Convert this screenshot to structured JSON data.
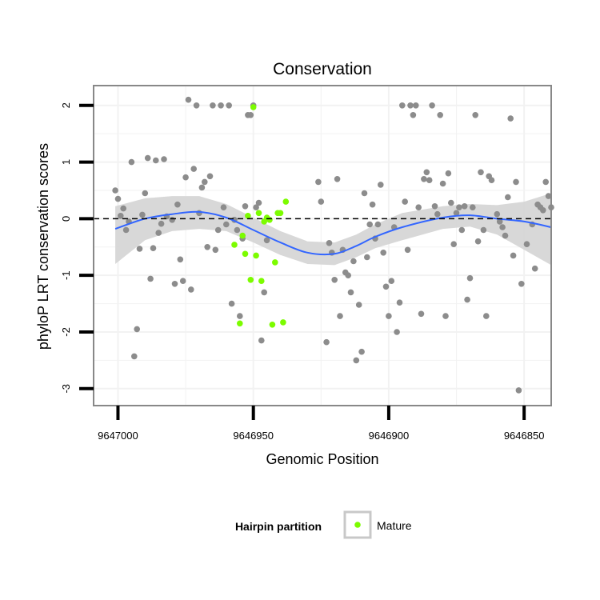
{
  "chart_data": {
    "type": "scatter",
    "title": "Conservation",
    "xlabel": "Genomic Position",
    "ylabel": "phyloP LRT conservation scores",
    "x_reversed": true,
    "xlim": [
      9647009,
      9646840
    ],
    "ylim": [
      -3.3,
      2.35
    ],
    "x_ticks": [
      9647000,
      9646950,
      9646900,
      9646850
    ],
    "y_ticks": [
      -3,
      -2,
      -1,
      0,
      1,
      2
    ],
    "reference_line": 0,
    "grid": true,
    "legend": {
      "title": "Hairpin partition",
      "entries": [
        "Mature"
      ],
      "position": "bottom"
    },
    "colors": {
      "other": "#8c8c8c",
      "mature": "#7cfc00",
      "smooth": "#3366ff",
      "band": "#d4d4d4",
      "panel_border": "#888888"
    },
    "series": [
      {
        "partition": "other",
        "points": [
          [
            9647001,
            0.5
          ],
          [
            9647000,
            0.35
          ],
          [
            9646999,
            0.05
          ],
          [
            9646998,
            0.18
          ],
          [
            9646997,
            -0.2
          ],
          [
            9646996,
            -0.05
          ],
          [
            9646995,
            1.0
          ],
          [
            9646994,
            -2.43
          ],
          [
            9646993,
            -1.95
          ],
          [
            9646992,
            -0.53
          ],
          [
            9646991,
            0.07
          ],
          [
            9646990,
            0.45
          ],
          [
            9646989,
            1.07
          ],
          [
            9646988,
            -1.06
          ],
          [
            9646987,
            -0.52
          ],
          [
            9646986,
            1.03
          ],
          [
            9646985,
            -0.25
          ],
          [
            9646984,
            -0.09
          ],
          [
            9646983,
            1.05
          ],
          [
            9646982,
            0.04
          ],
          [
            9646980,
            -0.02
          ],
          [
            9646979,
            -1.15
          ],
          [
            9646978,
            0.25
          ],
          [
            9646977,
            -0.72
          ],
          [
            9646976,
            -1.1
          ],
          [
            9646975,
            0.73
          ],
          [
            9646974,
            2.1
          ],
          [
            9646973,
            -1.25
          ],
          [
            9646972,
            0.88
          ],
          [
            9646971,
            2.0
          ],
          [
            9646970,
            0.1
          ],
          [
            9646969,
            0.55
          ],
          [
            9646968,
            0.65
          ],
          [
            9646967,
            -0.5
          ],
          [
            9646966,
            0.75
          ],
          [
            9646965,
            2.0
          ],
          [
            9646964,
            -0.55
          ],
          [
            9646963,
            -0.2
          ],
          [
            9646962,
            2.0
          ],
          [
            9646961,
            0.2
          ],
          [
            9646960,
            -0.1
          ],
          [
            9646959,
            2.0
          ],
          [
            9646958,
            -1.5
          ],
          [
            9646957,
            -0.02
          ],
          [
            9646956,
            -0.2
          ],
          [
            9646955,
            -1.72
          ],
          [
            9646954,
            -0.35
          ],
          [
            9646953,
            0.22
          ],
          [
            9646952,
            1.83
          ],
          [
            9646951,
            1.83
          ],
          [
            9646950,
            2.0
          ],
          [
            9646949,
            0.2
          ],
          [
            9646948,
            0.28
          ],
          [
            9646947,
            -2.15
          ],
          [
            9646946,
            -1.3
          ],
          [
            9646945,
            -0.38
          ],
          [
            9646926,
            0.65
          ],
          [
            9646925,
            0.3
          ],
          [
            9646923,
            -2.18
          ],
          [
            9646922,
            -0.43
          ],
          [
            9646921,
            -0.6
          ],
          [
            9646920,
            -1.08
          ],
          [
            9646919,
            0.7
          ],
          [
            9646918,
            -1.72
          ],
          [
            9646917,
            -0.55
          ],
          [
            9646916,
            -0.95
          ],
          [
            9646915,
            -1.0
          ],
          [
            9646914,
            -1.3
          ],
          [
            9646913,
            -0.75
          ],
          [
            9646912,
            -2.5
          ],
          [
            9646911,
            -1.52
          ],
          [
            9646910,
            -2.35
          ],
          [
            9646909,
            0.45
          ],
          [
            9646908,
            -0.68
          ],
          [
            9646907,
            -0.1
          ],
          [
            9646906,
            0.25
          ],
          [
            9646905,
            -0.35
          ],
          [
            9646904,
            -0.1
          ],
          [
            9646903,
            0.6
          ],
          [
            9646902,
            -0.6
          ],
          [
            9646901,
            -1.2
          ],
          [
            9646900,
            -1.72
          ],
          [
            9646899,
            -1.1
          ],
          [
            9646898,
            -0.15
          ],
          [
            9646897,
            -2.0
          ],
          [
            9646896,
            -1.48
          ],
          [
            9646895,
            2.0
          ],
          [
            9646894,
            0.3
          ],
          [
            9646893,
            -0.55
          ],
          [
            9646892,
            2.0
          ],
          [
            9646891,
            1.83
          ],
          [
            9646890,
            2.0
          ],
          [
            9646889,
            0.2
          ],
          [
            9646888,
            -1.68
          ],
          [
            9646887,
            0.7
          ],
          [
            9646886,
            0.82
          ],
          [
            9646885,
            0.68
          ],
          [
            9646884,
            2.0
          ],
          [
            9646883,
            0.22
          ],
          [
            9646882,
            0.08
          ],
          [
            9646881,
            1.83
          ],
          [
            9646880,
            0.62
          ],
          [
            9646879,
            -1.72
          ],
          [
            9646878,
            0.8
          ],
          [
            9646877,
            0.28
          ],
          [
            9646876,
            -0.45
          ],
          [
            9646875,
            0.1
          ],
          [
            9646874,
            0.2
          ],
          [
            9646873,
            -0.2
          ],
          [
            9646872,
            0.22
          ],
          [
            9646871,
            -1.43
          ],
          [
            9646870,
            -1.05
          ],
          [
            9646869,
            0.2
          ],
          [
            9646868,
            1.83
          ],
          [
            9646867,
            -0.4
          ],
          [
            9646866,
            0.82
          ],
          [
            9646865,
            -0.2
          ],
          [
            9646864,
            -1.72
          ],
          [
            9646863,
            0.75
          ],
          [
            9646862,
            0.68
          ],
          [
            9646860,
            0.08
          ],
          [
            9646859,
            -0.05
          ],
          [
            9646858,
            -0.15
          ],
          [
            9646857,
            -0.3
          ],
          [
            9646856,
            0.38
          ],
          [
            9646855,
            1.77
          ],
          [
            9646854,
            -0.65
          ],
          [
            9646853,
            0.65
          ],
          [
            9646852,
            -3.03
          ],
          [
            9646851,
            -1.15
          ],
          [
            9646849,
            -0.45
          ],
          [
            9646847,
            -0.1
          ],
          [
            9646846,
            -0.88
          ],
          [
            9646845,
            0.25
          ],
          [
            9646844,
            0.2
          ],
          [
            9646843,
            0.15
          ],
          [
            9646842,
            0.65
          ],
          [
            9646841,
            0.4
          ],
          [
            9646840,
            0.2
          ]
        ]
      },
      {
        "name": "Mature",
        "partition": "mature",
        "points": [
          [
            9646957,
            -0.46
          ],
          [
            9646955,
            -1.85
          ],
          [
            9646954,
            -0.3
          ],
          [
            9646953,
            -0.62
          ],
          [
            9646952,
            0.05
          ],
          [
            9646951,
            -1.08
          ],
          [
            9646950,
            1.97
          ],
          [
            9646949,
            -0.65
          ],
          [
            9646948,
            0.1
          ],
          [
            9646947,
            -1.1
          ],
          [
            9646946,
            -0.05
          ],
          [
            9646945,
            0.02
          ],
          [
            9646944,
            -0.02
          ],
          [
            9646943,
            -1.87
          ],
          [
            9646942,
            -0.77
          ],
          [
            9646941,
            0.1
          ],
          [
            9646940,
            0.1
          ],
          [
            9646939,
            -1.83
          ],
          [
            9646938,
            0.3
          ]
        ]
      }
    ],
    "smooth": {
      "method": "loess",
      "x": [
        9647001,
        9646990,
        9646980,
        9646970,
        9646960,
        9646950,
        9646940,
        9646930,
        9646920,
        9646912,
        9646905,
        9646895,
        9646880,
        9646870,
        9646860,
        9646850,
        9646840
      ],
      "y": [
        -0.18,
        0.0,
        0.08,
        0.12,
        0.02,
        -0.2,
        -0.42,
        -0.6,
        -0.62,
        -0.48,
        -0.32,
        -0.15,
        0.02,
        0.06,
        0.0,
        -0.05,
        -0.15
      ],
      "upper": [
        0.22,
        0.36,
        0.4,
        0.4,
        0.26,
        0.02,
        -0.22,
        -0.4,
        -0.42,
        -0.28,
        -0.1,
        0.1,
        0.22,
        0.26,
        0.24,
        0.3,
        0.45
      ],
      "lower": [
        -0.8,
        -0.38,
        -0.22,
        -0.18,
        -0.22,
        -0.42,
        -0.64,
        -0.8,
        -0.82,
        -0.68,
        -0.52,
        -0.38,
        -0.18,
        -0.14,
        -0.28,
        -0.55,
        -0.82
      ]
    }
  }
}
